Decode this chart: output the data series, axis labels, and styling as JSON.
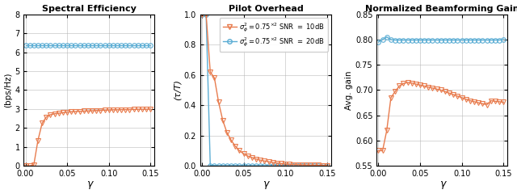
{
  "gamma": [
    0.0,
    0.005,
    0.01,
    0.015,
    0.02,
    0.025,
    0.03,
    0.035,
    0.04,
    0.045,
    0.05,
    0.055,
    0.06,
    0.065,
    0.07,
    0.075,
    0.08,
    0.085,
    0.09,
    0.095,
    0.1,
    0.105,
    0.11,
    0.115,
    0.12,
    0.125,
    0.13,
    0.135,
    0.14,
    0.145,
    0.15
  ],
  "se_snr10": [
    0.0,
    0.0,
    0.05,
    1.35,
    2.25,
    2.58,
    2.7,
    2.75,
    2.78,
    2.81,
    2.84,
    2.86,
    2.87,
    2.88,
    2.89,
    2.9,
    2.91,
    2.92,
    2.93,
    2.94,
    2.95,
    2.96,
    2.96,
    2.97,
    2.97,
    2.97,
    2.98,
    2.99,
    2.99,
    2.99,
    3.0
  ],
  "se_snr20": [
    6.35,
    6.35,
    6.35,
    6.35,
    6.35,
    6.35,
    6.35,
    6.35,
    6.35,
    6.35,
    6.35,
    6.35,
    6.35,
    6.35,
    6.35,
    6.35,
    6.35,
    6.35,
    6.35,
    6.35,
    6.35,
    6.35,
    6.35,
    6.35,
    6.35,
    6.35,
    6.35,
    6.35,
    6.35,
    6.35,
    6.35
  ],
  "po_snr10": [
    1.0,
    1.0,
    0.62,
    0.58,
    0.42,
    0.3,
    0.22,
    0.17,
    0.13,
    0.1,
    0.08,
    0.065,
    0.055,
    0.045,
    0.038,
    0.032,
    0.027,
    0.023,
    0.019,
    0.016,
    0.013,
    0.011,
    0.009,
    0.008,
    0.007,
    0.006,
    0.005,
    0.005,
    0.004,
    0.003,
    0.003
  ],
  "po_snr20": [
    1.0,
    1.0,
    0.003,
    0.002,
    0.001,
    0.001,
    0.001,
    0.001,
    0.001,
    0.001,
    0.001,
    0.001,
    0.001,
    0.001,
    0.001,
    0.001,
    0.001,
    0.001,
    0.001,
    0.001,
    0.001,
    0.001,
    0.001,
    0.001,
    0.001,
    0.001,
    0.001,
    0.001,
    0.001,
    0.001,
    0.001
  ],
  "bg_snr10": [
    0.58,
    0.58,
    0.62,
    0.685,
    0.697,
    0.708,
    0.713,
    0.715,
    0.714,
    0.712,
    0.71,
    0.708,
    0.706,
    0.704,
    0.702,
    0.7,
    0.697,
    0.694,
    0.691,
    0.688,
    0.685,
    0.682,
    0.679,
    0.677,
    0.675,
    0.673,
    0.671,
    0.679,
    0.678,
    0.677,
    0.676
  ],
  "bg_snr20": [
    0.795,
    0.8,
    0.805,
    0.8,
    0.799,
    0.799,
    0.799,
    0.799,
    0.799,
    0.799,
    0.799,
    0.799,
    0.799,
    0.799,
    0.799,
    0.799,
    0.799,
    0.799,
    0.799,
    0.799,
    0.799,
    0.799,
    0.799,
    0.799,
    0.799,
    0.799,
    0.799,
    0.799,
    0.799,
    0.799,
    0.8
  ],
  "color_snr10": "#E87C4E",
  "color_snr20": "#5BADD4",
  "title1": "Spectral Efficiency",
  "title2": "Pilot Overhead",
  "title3": "Normalized Beamforming Gain",
  "ylabel1": "(bps/Hz)",
  "ylabel2": "(τ/T)",
  "ylabel3": "Avg. gain",
  "xlabel": "γ",
  "ylim1": [
    0,
    8
  ],
  "ylim2": [
    0,
    1
  ],
  "ylim3": [
    0.55,
    0.85
  ],
  "yticks1": [
    0,
    1,
    2,
    3,
    4,
    5,
    6,
    7,
    8
  ],
  "yticks2": [
    0,
    0.2,
    0.4,
    0.6,
    0.8,
    1.0
  ],
  "yticks3": [
    0.55,
    0.6,
    0.65,
    0.7,
    0.75,
    0.8,
    0.85
  ],
  "xticks": [
    0,
    0.05,
    0.1,
    0.15
  ],
  "legend_label_snr10": "$\\sigma_\\phi^2 = 0.75^{\\times 2}$ SNR $=$ 10dB",
  "legend_label_snr20": "$\\sigma_\\phi^2 = 0.75^{\\times 2}$ SNR $=$ 20dB",
  "marker_snr10": "v",
  "marker_snr20": "o",
  "markersize": 4,
  "linewidth": 1.0,
  "figure_width": 6.4,
  "figure_height": 2.4,
  "dpi": 100
}
